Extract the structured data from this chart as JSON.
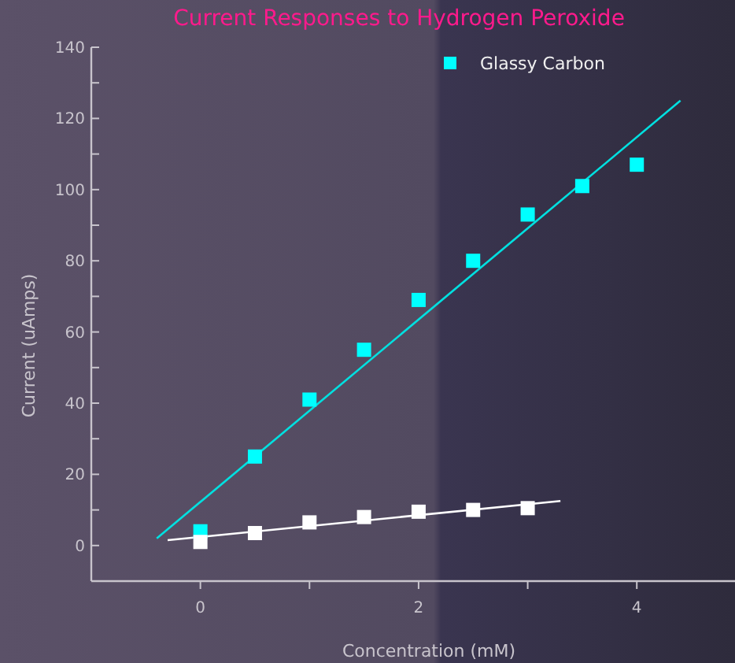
{
  "chart_data": {
    "type": "scatter",
    "title": "Current Responses to Hydrogen Peroxide",
    "xlabel": "Concentration (mM)",
    "ylabel": "Current (uAmps)",
    "xlim": [
      -1,
      4.9
    ],
    "ylim": [
      -10,
      140
    ],
    "xticks": [
      {
        "value": 0,
        "label": "0"
      },
      {
        "value": 1,
        "label": null
      },
      {
        "value": 2,
        "label": "2"
      },
      {
        "value": 3,
        "label": null
      },
      {
        "value": 4,
        "label": "4"
      }
    ],
    "yticks": [
      {
        "value": -10,
        "label": null
      },
      0,
      {
        "value": 10,
        "label": null
      },
      20,
      {
        "value": 30,
        "label": null
      },
      40,
      {
        "value": 50,
        "label": null
      },
      60,
      {
        "value": 70,
        "label": null
      },
      80,
      {
        "value": 90,
        "label": null
      },
      100,
      {
        "value": 110,
        "label": null
      },
      120,
      {
        "value": 130,
        "label": null
      },
      140
    ],
    "grid": false,
    "legend": "top right",
    "marker": "square",
    "series": [
      {
        "name": "Glassy Carbon",
        "color": "#00ffff",
        "x": [
          0,
          0.5,
          1,
          1.5,
          2,
          2.5,
          3,
          3.5,
          4
        ],
        "values": [
          4,
          25,
          41,
          55,
          69,
          80,
          93,
          101,
          107
        ]
      },
      {
        "color": "#ffffff",
        "x": [
          0,
          0.5,
          1,
          1.5,
          2,
          2.5,
          3
        ],
        "values": [
          1,
          3.5,
          6.5,
          8,
          9.5,
          10,
          10.5
        ]
      },
      {
        "type": "line",
        "color": "#00e0e0",
        "x": [
          -0.4,
          4.4
        ],
        "values": [
          2,
          125
        ],
        "marker": "none"
      },
      {
        "type": "line",
        "color": "#ffffff",
        "x": [
          -0.3,
          3.3
        ],
        "values": [
          1.5,
          12.5
        ],
        "marker": "none"
      }
    ]
  }
}
